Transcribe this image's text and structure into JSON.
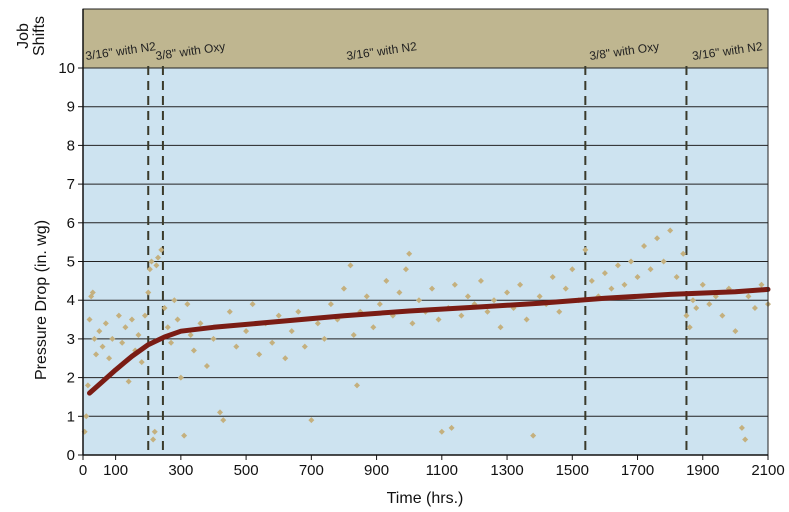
{
  "chart_data": {
    "type": "scatter",
    "xlabel": "Time (hrs.)",
    "ylabel": "Pressure Drop (in. wg)",
    "band_label_line1": "Job",
    "band_label_line2": "Shifts",
    "xlim": [
      0,
      2100
    ],
    "ylim": [
      0,
      10
    ],
    "x_ticks": [
      0,
      100,
      300,
      500,
      700,
      900,
      1100,
      1300,
      1500,
      1700,
      1900,
      2100
    ],
    "y_ticks": [
      0,
      1,
      2,
      3,
      4,
      5,
      6,
      7,
      8,
      9,
      10
    ],
    "grid": "horizontal",
    "colors": {
      "plot_background": "#cde3f0",
      "band_background": "#bfb690",
      "scatter": "#c4b07e",
      "trend_line": "#7a1c14",
      "dashed_lines": "#3a3a2a"
    },
    "shift_lines_x": [
      200,
      245,
      1540,
      1850
    ],
    "job_shifts": [
      {
        "label": "3/16\" with N2",
        "x": 0
      },
      {
        "label": "3/8\" with Oxy",
        "x": 215
      },
      {
        "label": "3/16\" with N2",
        "x": 800
      },
      {
        "label": "3/8\" with Oxy",
        "x": 1545
      },
      {
        "label": "3/16\" with N2",
        "x": 1860
      }
    ],
    "series": [
      {
        "type": "scatter",
        "points": [
          [
            5,
            0.6
          ],
          [
            10,
            1.0
          ],
          [
            15,
            1.8
          ],
          [
            20,
            3.5
          ],
          [
            25,
            4.1
          ],
          [
            30,
            4.2
          ],
          [
            35,
            3.0
          ],
          [
            40,
            2.6
          ],
          [
            50,
            3.2
          ],
          [
            60,
            2.8
          ],
          [
            70,
            3.4
          ],
          [
            80,
            2.5
          ],
          [
            90,
            3.0
          ],
          [
            100,
            2.2
          ],
          [
            110,
            3.6
          ],
          [
            120,
            2.9
          ],
          [
            130,
            3.3
          ],
          [
            140,
            1.9
          ],
          [
            150,
            3.5
          ],
          [
            160,
            2.7
          ],
          [
            170,
            3.1
          ],
          [
            180,
            2.4
          ],
          [
            190,
            3.6
          ],
          [
            200,
            4.2
          ],
          [
            205,
            4.8
          ],
          [
            210,
            5.0
          ],
          [
            215,
            0.4
          ],
          [
            220,
            0.6
          ],
          [
            225,
            4.9
          ],
          [
            230,
            5.1
          ],
          [
            240,
            5.3
          ],
          [
            250,
            3.8
          ],
          [
            260,
            3.3
          ],
          [
            270,
            2.9
          ],
          [
            280,
            4.0
          ],
          [
            290,
            3.5
          ],
          [
            300,
            2.0
          ],
          [
            310,
            0.5
          ],
          [
            320,
            3.9
          ],
          [
            330,
            3.1
          ],
          [
            340,
            2.7
          ],
          [
            360,
            3.4
          ],
          [
            380,
            2.3
          ],
          [
            400,
            3.0
          ],
          [
            420,
            1.1
          ],
          [
            430,
            0.9
          ],
          [
            450,
            3.7
          ],
          [
            470,
            2.8
          ],
          [
            500,
            3.2
          ],
          [
            520,
            3.9
          ],
          [
            540,
            2.6
          ],
          [
            560,
            3.4
          ],
          [
            580,
            2.9
          ],
          [
            600,
            3.6
          ],
          [
            620,
            2.5
          ],
          [
            640,
            3.2
          ],
          [
            660,
            3.7
          ],
          [
            680,
            2.8
          ],
          [
            700,
            0.9
          ],
          [
            720,
            3.4
          ],
          [
            740,
            3.0
          ],
          [
            760,
            3.9
          ],
          [
            780,
            3.5
          ],
          [
            800,
            4.3
          ],
          [
            820,
            4.9
          ],
          [
            830,
            3.1
          ],
          [
            840,
            1.8
          ],
          [
            850,
            3.7
          ],
          [
            870,
            4.1
          ],
          [
            890,
            3.3
          ],
          [
            910,
            3.9
          ],
          [
            930,
            4.5
          ],
          [
            950,
            3.6
          ],
          [
            970,
            4.2
          ],
          [
            990,
            4.8
          ],
          [
            1000,
            5.2
          ],
          [
            1010,
            3.4
          ],
          [
            1030,
            4.0
          ],
          [
            1050,
            3.7
          ],
          [
            1070,
            4.3
          ],
          [
            1090,
            3.5
          ],
          [
            1100,
            0.6
          ],
          [
            1120,
            3.8
          ],
          [
            1130,
            0.7
          ],
          [
            1140,
            4.4
          ],
          [
            1160,
            3.6
          ],
          [
            1180,
            4.1
          ],
          [
            1200,
            3.9
          ],
          [
            1220,
            4.5
          ],
          [
            1240,
            3.7
          ],
          [
            1260,
            4.0
          ],
          [
            1280,
            3.3
          ],
          [
            1300,
            4.2
          ],
          [
            1320,
            3.8
          ],
          [
            1340,
            4.4
          ],
          [
            1360,
            3.5
          ],
          [
            1380,
            0.5
          ],
          [
            1400,
            4.1
          ],
          [
            1420,
            3.9
          ],
          [
            1440,
            4.6
          ],
          [
            1460,
            3.7
          ],
          [
            1480,
            4.3
          ],
          [
            1500,
            4.8
          ],
          [
            1520,
            4.0
          ],
          [
            1540,
            5.3
          ],
          [
            1560,
            4.5
          ],
          [
            1580,
            4.1
          ],
          [
            1600,
            4.7
          ],
          [
            1620,
            4.3
          ],
          [
            1640,
            4.9
          ],
          [
            1660,
            4.4
          ],
          [
            1680,
            5.0
          ],
          [
            1700,
            4.6
          ],
          [
            1720,
            5.4
          ],
          [
            1740,
            4.8
          ],
          [
            1760,
            5.6
          ],
          [
            1780,
            5.0
          ],
          [
            1800,
            5.8
          ],
          [
            1820,
            4.6
          ],
          [
            1840,
            5.2
          ],
          [
            1850,
            3.6
          ],
          [
            1860,
            3.3
          ],
          [
            1870,
            4.0
          ],
          [
            1880,
            3.8
          ],
          [
            1900,
            4.4
          ],
          [
            1920,
            3.9
          ],
          [
            1940,
            4.1
          ],
          [
            1960,
            3.6
          ],
          [
            1980,
            4.3
          ],
          [
            2000,
            3.2
          ],
          [
            2020,
            0.7
          ],
          [
            2030,
            0.4
          ],
          [
            2040,
            4.1
          ],
          [
            2060,
            3.8
          ],
          [
            2080,
            4.4
          ],
          [
            2100,
            3.9
          ]
        ]
      },
      {
        "type": "line",
        "points": [
          [
            20,
            1.6
          ],
          [
            60,
            1.9
          ],
          [
            100,
            2.2
          ],
          [
            150,
            2.55
          ],
          [
            200,
            2.85
          ],
          [
            250,
            3.05
          ],
          [
            300,
            3.2
          ],
          [
            400,
            3.3
          ],
          [
            600,
            3.45
          ],
          [
            800,
            3.6
          ],
          [
            1000,
            3.72
          ],
          [
            1200,
            3.82
          ],
          [
            1400,
            3.92
          ],
          [
            1600,
            4.05
          ],
          [
            1800,
            4.15
          ],
          [
            2000,
            4.22
          ],
          [
            2100,
            4.28
          ]
        ]
      }
    ]
  }
}
